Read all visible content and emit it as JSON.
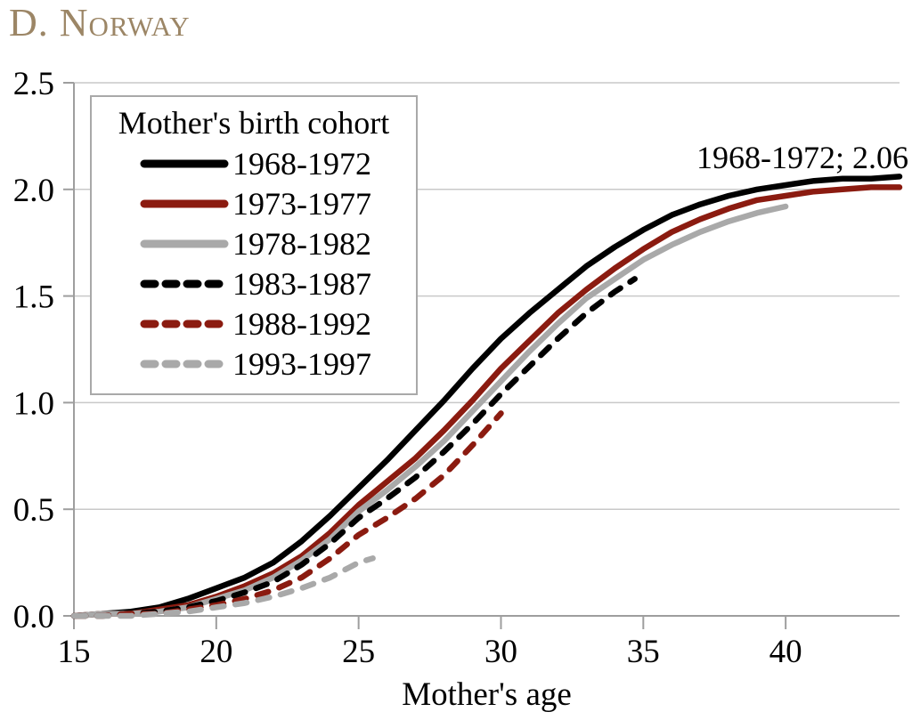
{
  "title": "D. Norway",
  "annotation": {
    "text": "1968-1972; 2.06"
  },
  "colors": {
    "title": "#9C8666",
    "axis": "#9E9E9E",
    "grid": "#C9C9C9",
    "black_series": "#000000",
    "darkred_series": "#8B1B10",
    "gray_series": "#A9A9A9"
  },
  "chart_data": {
    "type": "line",
    "title": "D. Norway",
    "xlabel": "Mother's age",
    "ylabel": "",
    "xlim": [
      15,
      44
    ],
    "ylim": [
      0,
      2.5
    ],
    "xticks": [
      15,
      20,
      25,
      30,
      35,
      40
    ],
    "yticks": [
      "0.0",
      "0.5",
      "1.0",
      "1.5",
      "2.0",
      "2.5"
    ],
    "grid": "horizontal",
    "legend": {
      "title": "Mother's birth cohort",
      "position": "upper-left"
    },
    "annotation": "1968-1972; 2.06",
    "series": [
      {
        "name": "1968-1972",
        "color": "#000000",
        "dash": "solid",
        "x": [
          15,
          16,
          17,
          18,
          19,
          20,
          21,
          22,
          23,
          24,
          25,
          26,
          27,
          28,
          29,
          30,
          31,
          32,
          33,
          34,
          35,
          36,
          37,
          38,
          39,
          40,
          41,
          42,
          43,
          44
        ],
        "y": [
          0.0,
          0.01,
          0.02,
          0.04,
          0.08,
          0.13,
          0.18,
          0.25,
          0.35,
          0.47,
          0.6,
          0.73,
          0.87,
          1.01,
          1.16,
          1.3,
          1.42,
          1.53,
          1.64,
          1.73,
          1.81,
          1.88,
          1.93,
          1.97,
          2.0,
          2.02,
          2.04,
          2.05,
          2.05,
          2.06
        ]
      },
      {
        "name": "1973-1977",
        "color": "#8B1B10",
        "dash": "solid",
        "x": [
          15,
          16,
          17,
          18,
          19,
          20,
          21,
          22,
          23,
          24,
          25,
          26,
          27,
          28,
          29,
          30,
          31,
          32,
          33,
          34,
          35,
          36,
          37,
          38,
          39,
          40,
          41,
          42,
          43,
          44
        ],
        "y": [
          0.0,
          0.01,
          0.01,
          0.03,
          0.05,
          0.09,
          0.14,
          0.2,
          0.28,
          0.39,
          0.52,
          0.63,
          0.74,
          0.87,
          1.01,
          1.16,
          1.29,
          1.42,
          1.53,
          1.63,
          1.72,
          1.8,
          1.86,
          1.91,
          1.95,
          1.97,
          1.99,
          2.0,
          2.01,
          2.01
        ]
      },
      {
        "name": "1978-1982",
        "color": "#A9A9A9",
        "dash": "solid",
        "x": [
          15,
          16,
          17,
          18,
          19,
          20,
          21,
          22,
          23,
          24,
          25,
          26,
          27,
          28,
          29,
          30,
          31,
          32,
          33,
          34,
          35,
          36,
          37,
          38,
          39,
          40
        ],
        "y": [
          0.0,
          0.01,
          0.01,
          0.02,
          0.04,
          0.08,
          0.12,
          0.18,
          0.26,
          0.36,
          0.49,
          0.59,
          0.7,
          0.82,
          0.96,
          1.1,
          1.24,
          1.37,
          1.49,
          1.58,
          1.67,
          1.74,
          1.8,
          1.85,
          1.89,
          1.92
        ]
      },
      {
        "name": "1983-1987",
        "color": "#000000",
        "dash": "dashed",
        "x": [
          15,
          16,
          17,
          18,
          19,
          20,
          21,
          22,
          23,
          24,
          25,
          26,
          27,
          28,
          29,
          30,
          31,
          32,
          33,
          34,
          34.7
        ],
        "y": [
          0.0,
          0.0,
          0.01,
          0.02,
          0.04,
          0.07,
          0.11,
          0.16,
          0.24,
          0.34,
          0.46,
          0.55,
          0.65,
          0.77,
          0.9,
          1.04,
          1.17,
          1.3,
          1.42,
          1.52,
          1.58
        ]
      },
      {
        "name": "1988-1992",
        "color": "#8B1B10",
        "dash": "dashed",
        "x": [
          15,
          16,
          17,
          18,
          19,
          20,
          21,
          22,
          23,
          24,
          25,
          26,
          27,
          28,
          29,
          30
        ],
        "y": [
          0.0,
          0.0,
          0.01,
          0.01,
          0.03,
          0.05,
          0.08,
          0.12,
          0.18,
          0.27,
          0.38,
          0.46,
          0.55,
          0.66,
          0.8,
          0.95
        ]
      },
      {
        "name": "1993-1997",
        "color": "#A9A9A9",
        "dash": "dashed",
        "x": [
          15,
          16,
          17,
          18,
          19,
          20,
          21,
          22,
          23,
          24,
          25,
          25.5
        ],
        "y": [
          0.0,
          0.0,
          0.0,
          0.01,
          0.02,
          0.04,
          0.06,
          0.09,
          0.13,
          0.18,
          0.25,
          0.27
        ]
      }
    ]
  }
}
